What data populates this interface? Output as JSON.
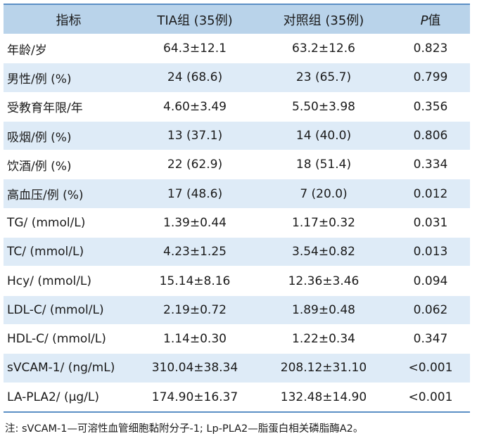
{
  "table": {
    "headers": {
      "indicator": "指标",
      "tia": "TIA组 (35例)",
      "control": "对照组 (35例)",
      "p_italic": "P",
      "p_suffix": "值"
    },
    "rows": [
      {
        "label": "年龄/岁",
        "tia": "64.3±12.1",
        "control": "63.2±12.6",
        "p": "0.823"
      },
      {
        "label": "男性/例 (%)",
        "tia": "24 (68.6)",
        "control": "23 (65.7)",
        "p": "0.799"
      },
      {
        "label": "受教育年限/年",
        "tia": "4.60±3.49",
        "control": "5.50±3.98",
        "p": "0.356"
      },
      {
        "label": "吸烟/例 (%)",
        "tia": "13 (37.1)",
        "control": "14 (40.0)",
        "p": "0.806"
      },
      {
        "label": "饮酒/例 (%)",
        "tia": "22 (62.9)",
        "control": "18 (51.4)",
        "p": "0.334"
      },
      {
        "label": "高血压/例 (%)",
        "tia": "17 (48.6)",
        "control": "7 (20.0)",
        "p": "0.012"
      },
      {
        "label": "TG/ (mmol/L)",
        "tia": "1.39±0.44",
        "control": "1.17±0.32",
        "p": "0.031"
      },
      {
        "label": "TC/ (mmol/L)",
        "tia": "4.23±1.25",
        "control": "3.54±0.82",
        "p": "0.013"
      },
      {
        "label": "Hcy/ (mmol/L)",
        "tia": "15.14±8.16",
        "control": "12.36±3.46",
        "p": "0.094"
      },
      {
        "label": "LDL-C/ (mmol/L)",
        "tia": "2.19±0.72",
        "control": "1.89±0.48",
        "p": "0.062"
      },
      {
        "label": "HDL-C/ (mmol/L)",
        "tia": "1.14±0.30",
        "control": "1.22±0.34",
        "p": "0.347"
      },
      {
        "label": "sVCAM-1/ (ng/mL)",
        "tia": "310.04±38.34",
        "control": "208.12±31.10",
        "p": "<0.001"
      },
      {
        "label": "LA-PLA2/ (μg/L)",
        "tia": "174.90±16.37",
        "control": "132.48±14.90",
        "p": "<0.001"
      }
    ]
  },
  "footnote": "注: sVCAM-1—可溶性血管细胞黏附分子-1; Lp-PLA2—脂蛋白相关磷脂酶A2。",
  "colors": {
    "header_bg": "#b9d3ea",
    "stripe_bg": "#deebf7",
    "rule": "#5b8fc5"
  }
}
